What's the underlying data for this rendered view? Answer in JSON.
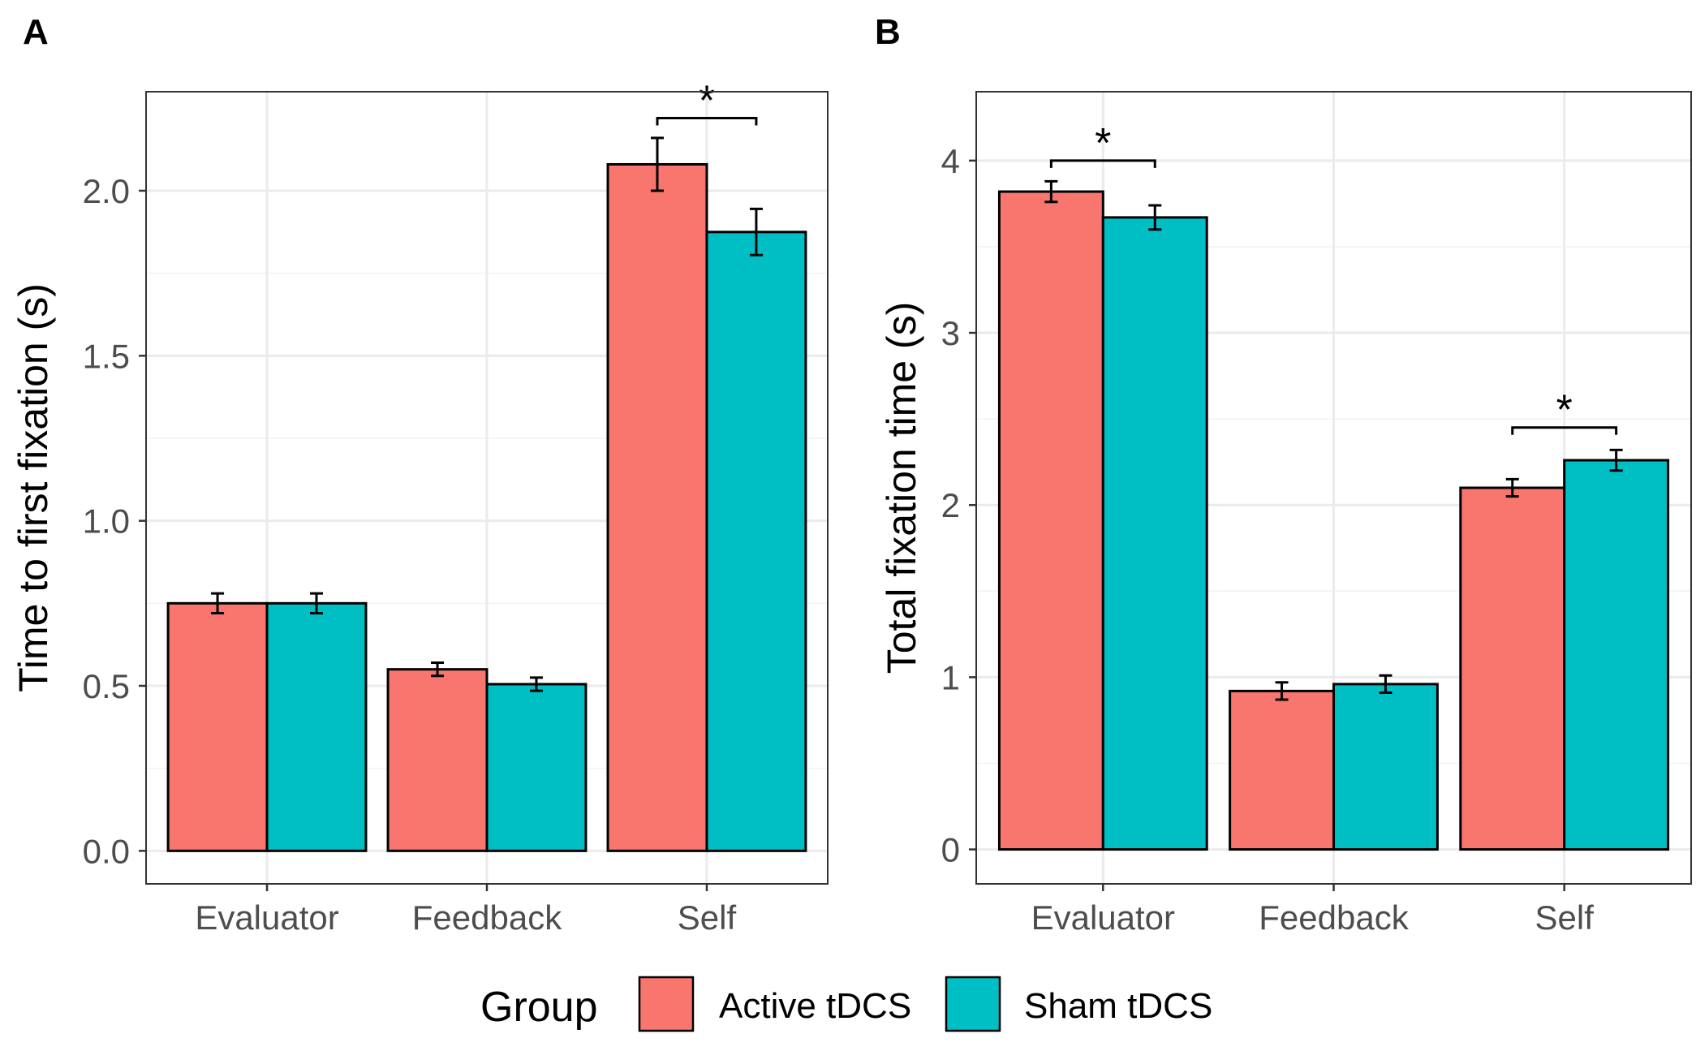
{
  "legend": {
    "title": "Group",
    "entries": [
      {
        "label": "Active tDCS",
        "color": "#F8766D"
      },
      {
        "label": "Sham tDCS",
        "color": "#00BFC4"
      }
    ]
  },
  "chart_data": [
    {
      "panel": "A",
      "type": "bar",
      "title": "",
      "xlabel": "",
      "ylabel": "Time to first fixation (s)",
      "categories": [
        "Evaluator",
        "Feedback",
        "Self"
      ],
      "ylim": [
        -0.1,
        2.3
      ],
      "yticks": [
        0.0,
        0.5,
        1.0,
        1.5,
        2.0
      ],
      "yticklabels": [
        "0.0",
        "0.5",
        "1.0",
        "1.5",
        "2.0"
      ],
      "grid": true,
      "series": [
        {
          "name": "Active tDCS",
          "color": "#F8766D",
          "values": [
            0.75,
            0.55,
            2.08
          ],
          "errors": [
            0.03,
            0.02,
            0.08
          ]
        },
        {
          "name": "Sham tDCS",
          "color": "#00BFC4",
          "values": [
            0.75,
            0.505,
            1.875
          ],
          "errors": [
            0.03,
            0.02,
            0.07
          ]
        }
      ],
      "annotations": [
        {
          "category": "Self",
          "text": "*",
          "y": 2.22
        }
      ]
    },
    {
      "panel": "B",
      "type": "bar",
      "title": "",
      "xlabel": "",
      "ylabel": "Total fixation time (s)",
      "categories": [
        "Evaluator",
        "Feedback",
        "Self"
      ],
      "ylim": [
        -0.2,
        4.4
      ],
      "yticks": [
        0,
        1,
        2,
        3,
        4
      ],
      "yticklabels": [
        "0",
        "1",
        "2",
        "3",
        "4"
      ],
      "grid": true,
      "series": [
        {
          "name": "Active tDCS",
          "color": "#F8766D",
          "values": [
            3.82,
            0.92,
            2.1
          ],
          "errors": [
            0.06,
            0.05,
            0.05
          ]
        },
        {
          "name": "Sham tDCS",
          "color": "#00BFC4",
          "values": [
            3.67,
            0.96,
            2.26
          ],
          "errors": [
            0.07,
            0.05,
            0.06
          ]
        }
      ],
      "annotations": [
        {
          "category": "Evaluator",
          "text": "*",
          "y": 4.0
        },
        {
          "category": "Self",
          "text": "*",
          "y": 2.45
        }
      ]
    }
  ]
}
